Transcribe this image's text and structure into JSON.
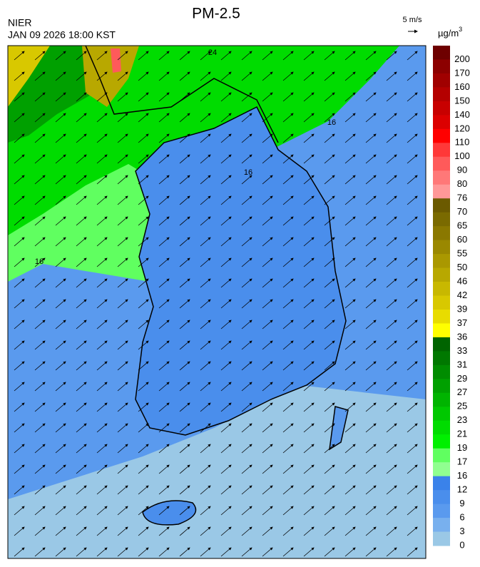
{
  "header": {
    "title": "PM-2.5",
    "agency": "NIER",
    "datetime": "JAN 09 2026 18:00 KST",
    "wind_scale": "5 m/s",
    "unit": "µg/m",
    "unit_exponent": "3"
  },
  "colorbar": {
    "levels": [
      200,
      170,
      160,
      150,
      140,
      120,
      110,
      100,
      90,
      80,
      76,
      70,
      65,
      60,
      55,
      50,
      46,
      42,
      39,
      37,
      36,
      33,
      31,
      29,
      27,
      25,
      23,
      21,
      19,
      17,
      16,
      12,
      9,
      6,
      3,
      0
    ],
    "colors": [
      "#6e0000",
      "#8c0000",
      "#a00000",
      "#b40000",
      "#c80000",
      "#dc0000",
      "#ff0000",
      "#ff3838",
      "#ff5a5a",
      "#ff7878",
      "#ff9898",
      "#6b5a00",
      "#7a6a00",
      "#8a7800",
      "#9a8800",
      "#aa9800",
      "#b8a800",
      "#c8b800",
      "#d8c800",
      "#e8dc00",
      "#ffff00",
      "#006400",
      "#007800",
      "#008c00",
      "#00a000",
      "#00b400",
      "#00c800",
      "#00dc00",
      "#00f000",
      "#60ff60",
      "#90ff90",
      "#3a82ea",
      "#4a8eec",
      "#5a9aee",
      "#78b0ee",
      "#9ac8e6"
    ]
  },
  "contour_labels": [
    "16",
    "16",
    "16",
    "24"
  ]
}
